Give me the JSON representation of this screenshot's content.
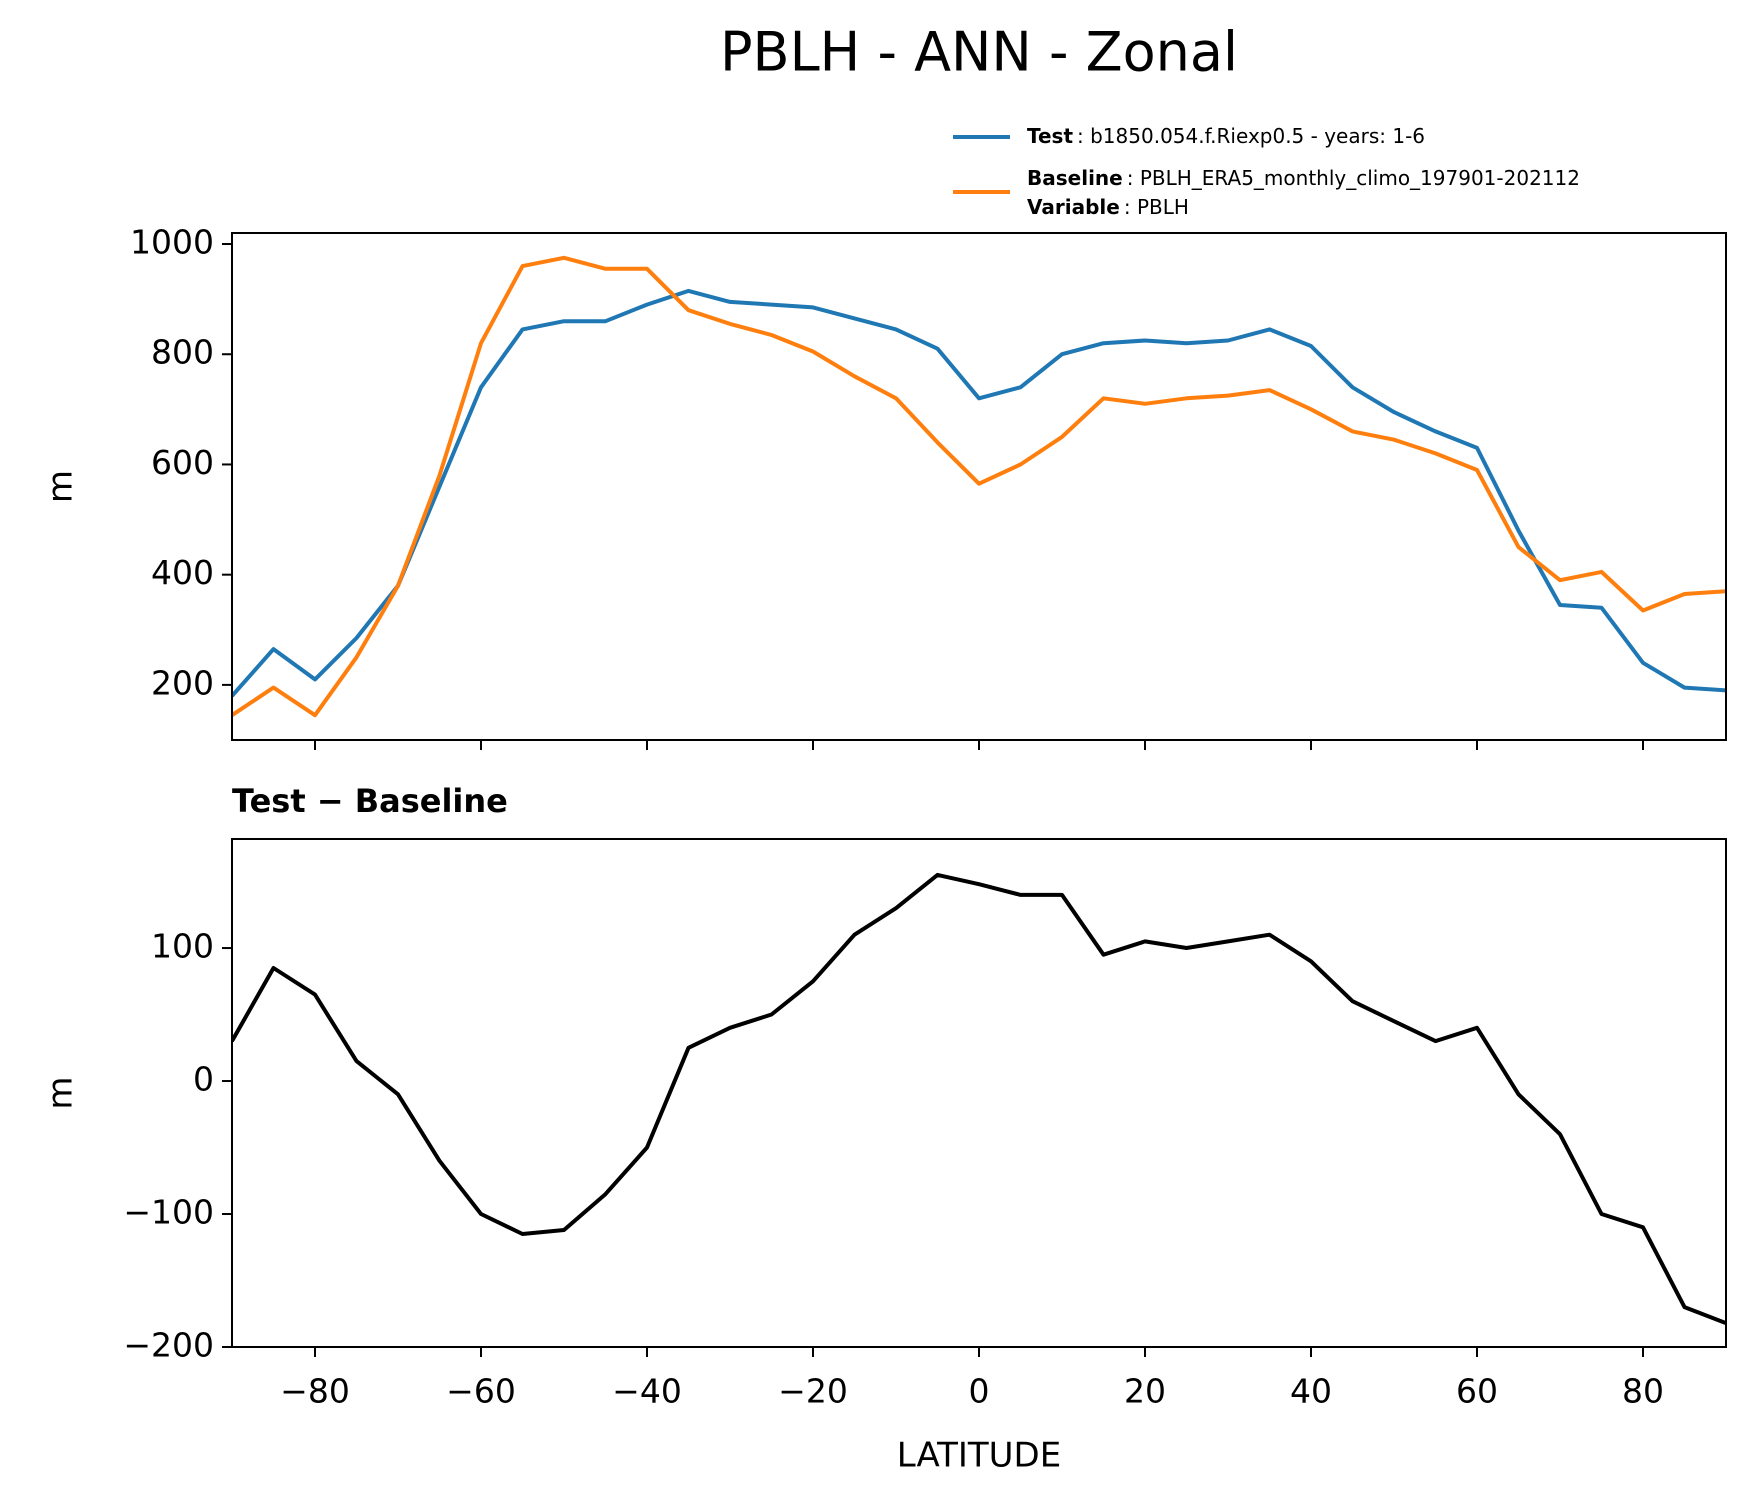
{
  "chart_data": [
    {
      "type": "line",
      "title": "PBLH - ANN - Zonal",
      "ylabel": "m",
      "x": [
        -90,
        -85,
        -80,
        -75,
        -70,
        -65,
        -60,
        -55,
        -50,
        -45,
        -40,
        -35,
        -30,
        -25,
        -20,
        -15,
        -10,
        -5,
        0,
        5,
        10,
        15,
        20,
        25,
        30,
        35,
        40,
        45,
        50,
        55,
        60,
        65,
        70,
        75,
        80,
        85,
        90
      ],
      "series": [
        {
          "name": "Test",
          "detail": ": b1850.054.f.Riexp0.5 - years: 1-6",
          "color": "#1f77b4",
          "values": [
            180,
            265,
            210,
            285,
            380,
            560,
            740,
            845,
            860,
            860,
            890,
            915,
            895,
            890,
            885,
            865,
            845,
            810,
            720,
            740,
            800,
            820,
            825,
            820,
            825,
            845,
            815,
            740,
            695,
            660,
            630,
            480,
            345,
            340,
            240,
            195,
            190
          ]
        },
        {
          "name": "Baseline",
          "detail": ": PBLH_ERA5_monthly_climo_197901-202112",
          "color": "#ff7f0e",
          "values": [
            145,
            195,
            145,
            250,
            380,
            580,
            820,
            960,
            975,
            955,
            955,
            880,
            855,
            835,
            805,
            760,
            720,
            640,
            565,
            600,
            650,
            720,
            710,
            720,
            725,
            735,
            700,
            660,
            645,
            620,
            590,
            450,
            390,
            405,
            335,
            365,
            370
          ]
        }
      ],
      "legend_extra": {
        "name": "Variable",
        "detail": ": PBLH"
      },
      "xlim": [
        -90,
        90
      ],
      "xticks": [
        -80,
        -60,
        -40,
        -20,
        0,
        20,
        40,
        60,
        80
      ],
      "xticklabels": false,
      "ylim": [
        100,
        1020
      ],
      "yticks": [
        200,
        400,
        600,
        800,
        1000
      ]
    },
    {
      "type": "line",
      "title": "Test − Baseline",
      "ylabel": "m",
      "xlabel": "LATITUDE",
      "x": [
        -90,
        -85,
        -80,
        -75,
        -70,
        -65,
        -60,
        -55,
        -50,
        -45,
        -40,
        -35,
        -30,
        -25,
        -20,
        -15,
        -10,
        -5,
        0,
        5,
        10,
        15,
        20,
        25,
        30,
        35,
        40,
        45,
        50,
        55,
        60,
        65,
        70,
        75,
        80,
        85,
        90
      ],
      "series": [
        {
          "color": "#000000",
          "values": [
            30,
            85,
            65,
            15,
            -10,
            -60,
            -100,
            -115,
            -112,
            -85,
            -50,
            25,
            40,
            50,
            75,
            110,
            130,
            155,
            148,
            140,
            140,
            95,
            105,
            100,
            105,
            110,
            90,
            60,
            45,
            30,
            40,
            -10,
            -40,
            -100,
            -110,
            -170,
            -182
          ]
        }
      ],
      "xlim": [
        -90,
        90
      ],
      "xticks": [
        {
          "value": -80,
          "label": "−80"
        },
        {
          "value": -60,
          "label": "−60"
        },
        {
          "value": -40,
          "label": "−40"
        },
        {
          "value": -20,
          "label": "−20"
        },
        0,
        20,
        40,
        60,
        80
      ],
      "xticklabels": true,
      "ylim": [
        -200,
        182
      ],
      "yticks": [
        {
          "value": -200,
          "label": "−200"
        },
        {
          "value": -100,
          "label": "−100"
        },
        0,
        100
      ]
    }
  ]
}
